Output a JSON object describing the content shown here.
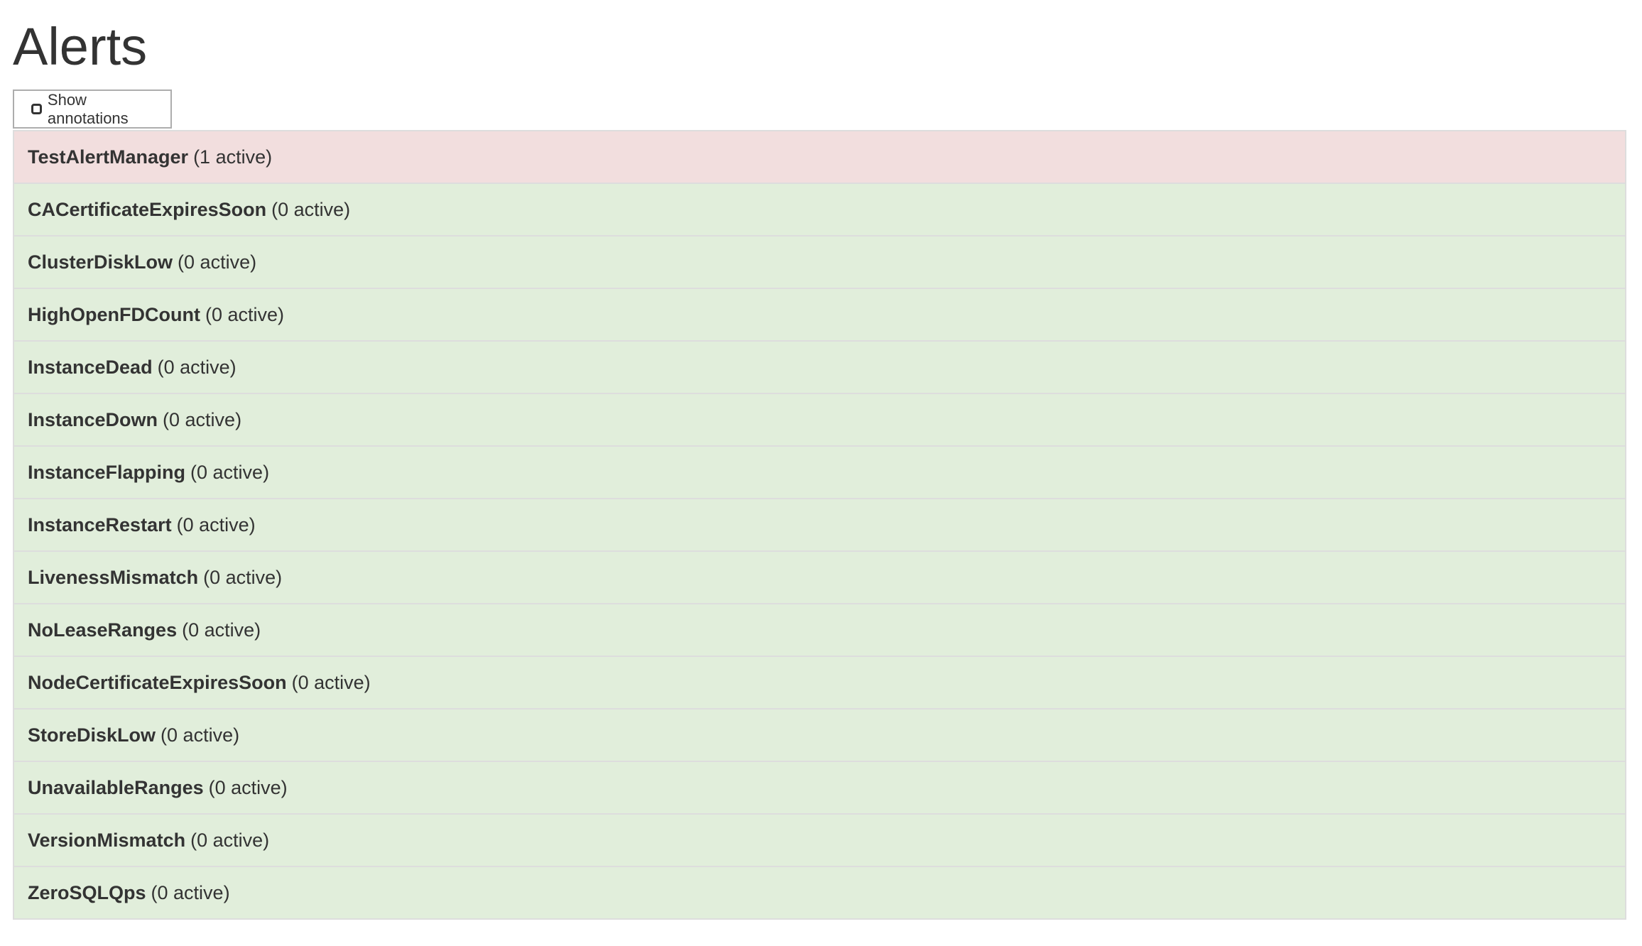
{
  "page": {
    "title": "Alerts"
  },
  "toolbar": {
    "show_annotations_label": "Show annotations",
    "show_annotations_checked": false
  },
  "colors": {
    "firing": "#f2dede",
    "inactive": "#e1eedb",
    "border": "#dddddd",
    "text": "#333333"
  },
  "alerts": [
    {
      "name": "TestAlertManager",
      "count": "(1 active)",
      "state": "firing"
    },
    {
      "name": "CACertificateExpiresSoon",
      "count": "(0 active)",
      "state": "inactive"
    },
    {
      "name": "ClusterDiskLow",
      "count": "(0 active)",
      "state": "inactive"
    },
    {
      "name": "HighOpenFDCount",
      "count": "(0 active)",
      "state": "inactive"
    },
    {
      "name": "InstanceDead",
      "count": "(0 active)",
      "state": "inactive"
    },
    {
      "name": "InstanceDown",
      "count": "(0 active)",
      "state": "inactive"
    },
    {
      "name": "InstanceFlapping",
      "count": "(0 active)",
      "state": "inactive"
    },
    {
      "name": "InstanceRestart",
      "count": "(0 active)",
      "state": "inactive"
    },
    {
      "name": "LivenessMismatch",
      "count": "(0 active)",
      "state": "inactive"
    },
    {
      "name": "NoLeaseRanges",
      "count": "(0 active)",
      "state": "inactive"
    },
    {
      "name": "NodeCertificateExpiresSoon",
      "count": "(0 active)",
      "state": "inactive"
    },
    {
      "name": "StoreDiskLow",
      "count": "(0 active)",
      "state": "inactive"
    },
    {
      "name": "UnavailableRanges",
      "count": "(0 active)",
      "state": "inactive"
    },
    {
      "name": "VersionMismatch",
      "count": "(0 active)",
      "state": "inactive"
    },
    {
      "name": "ZeroSQLQps",
      "count": "(0 active)",
      "state": "inactive"
    }
  ]
}
